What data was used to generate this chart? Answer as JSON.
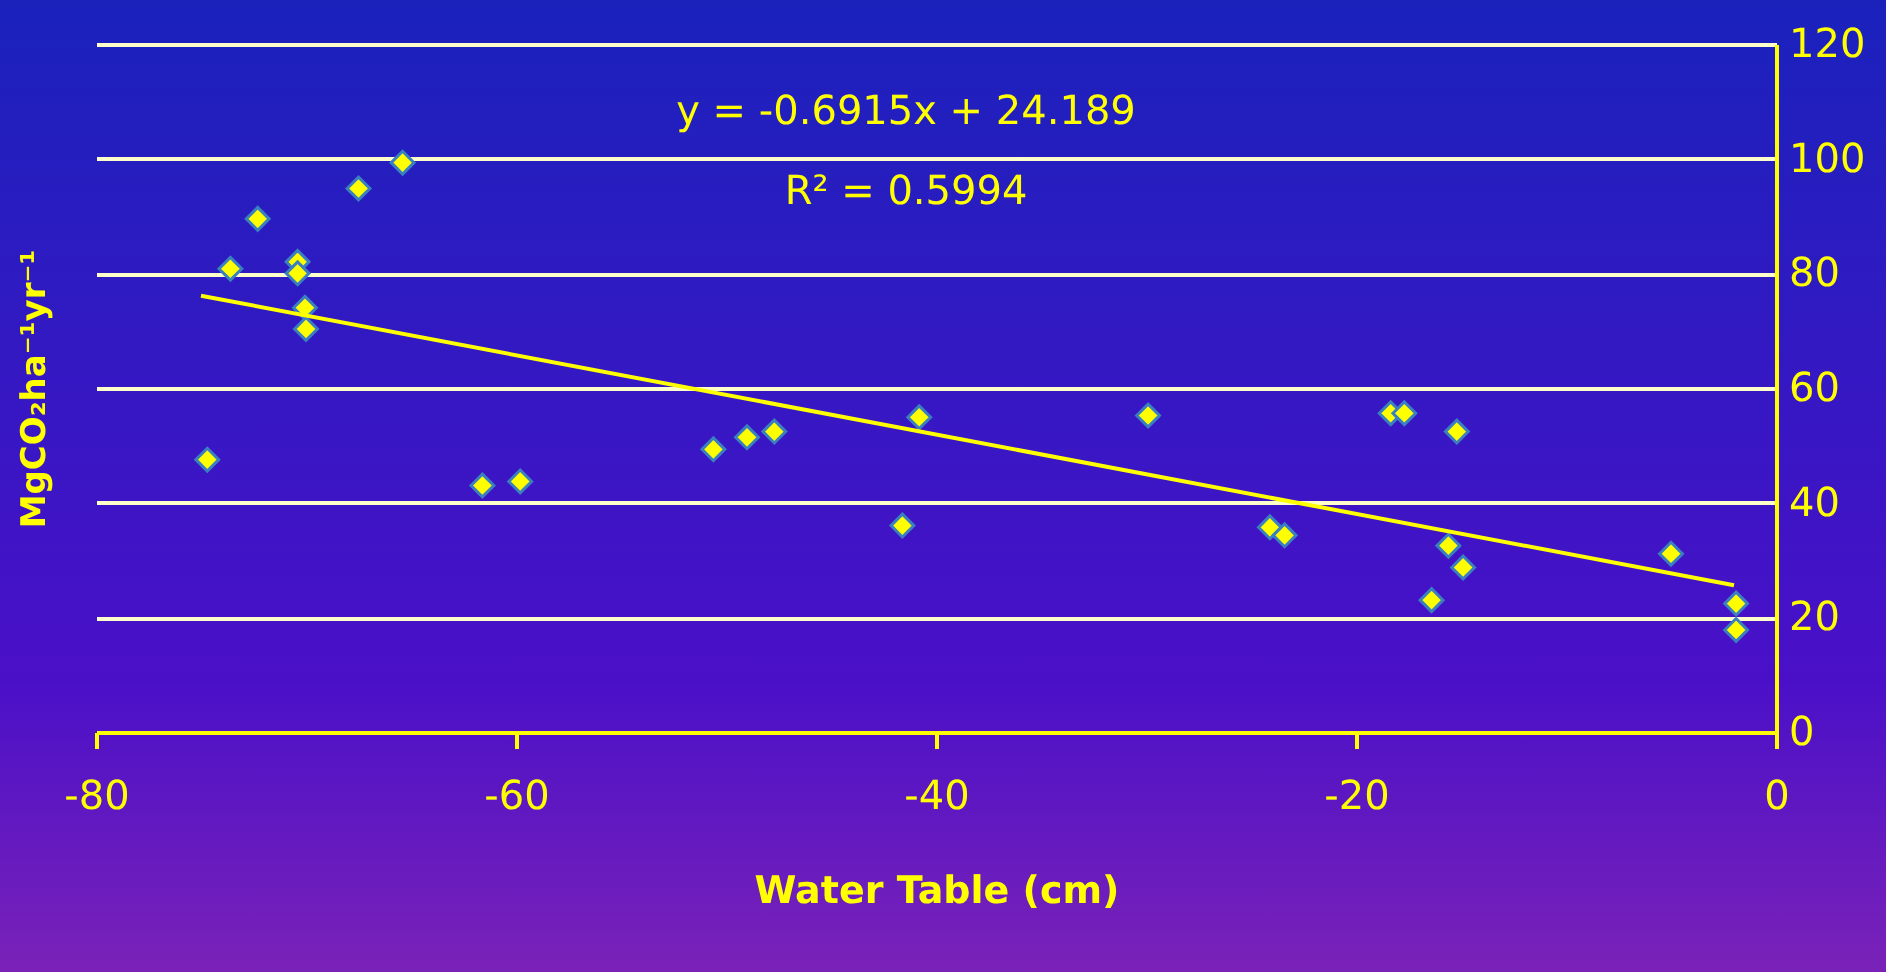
{
  "chart_data": {
    "type": "scatter",
    "xlabel": "Water Table (cm)",
    "ylabel": "MgCO₂ha⁻¹yr⁻¹",
    "annotations": [
      "y = -0.6915x + 24.189",
      "R² = 0.5994"
    ],
    "xlim": [
      -80,
      0
    ],
    "xticks": [
      -80,
      -60,
      -40,
      -20,
      0
    ],
    "ylim": [
      0,
      120
    ],
    "yticks": [
      0,
      20,
      40,
      60,
      80,
      100,
      120
    ],
    "grid": "y",
    "legend": false,
    "series": [
      {
        "marker": "diamond",
        "color": "#ffff00",
        "x": [
          -74.7,
          -73.6,
          -72.3,
          -70.4,
          -70.4,
          -70.05,
          -70.0,
          -67.5,
          -65.4,
          -61.6,
          -59.8,
          -50.6,
          -49.0,
          -47.7,
          -40.8,
          -41.6,
          -29.9,
          -24.1,
          -23.4,
          -18.35,
          -17.7,
          -15.2,
          -15.6,
          -14.9,
          -16.4,
          -5.0,
          -1.9,
          -1.9
        ],
        "values": [
          47.5,
          80.8,
          89.5,
          82,
          80,
          74,
          70.3,
          94.8,
          99.3,
          43,
          43.7,
          49.3,
          51.4,
          52.4,
          54.9,
          36,
          55.2,
          35.7,
          34.3,
          55.6,
          55.6,
          52.4,
          32.5,
          28.7,
          23,
          31.1,
          22.4,
          17.8
        ]
      },
      {
        "type": "line",
        "color": "#ffff00",
        "line_style": "solid",
        "x": [
          -75,
          -2
        ],
        "values": [
          76.1,
          25.6
        ]
      }
    ]
  }
}
